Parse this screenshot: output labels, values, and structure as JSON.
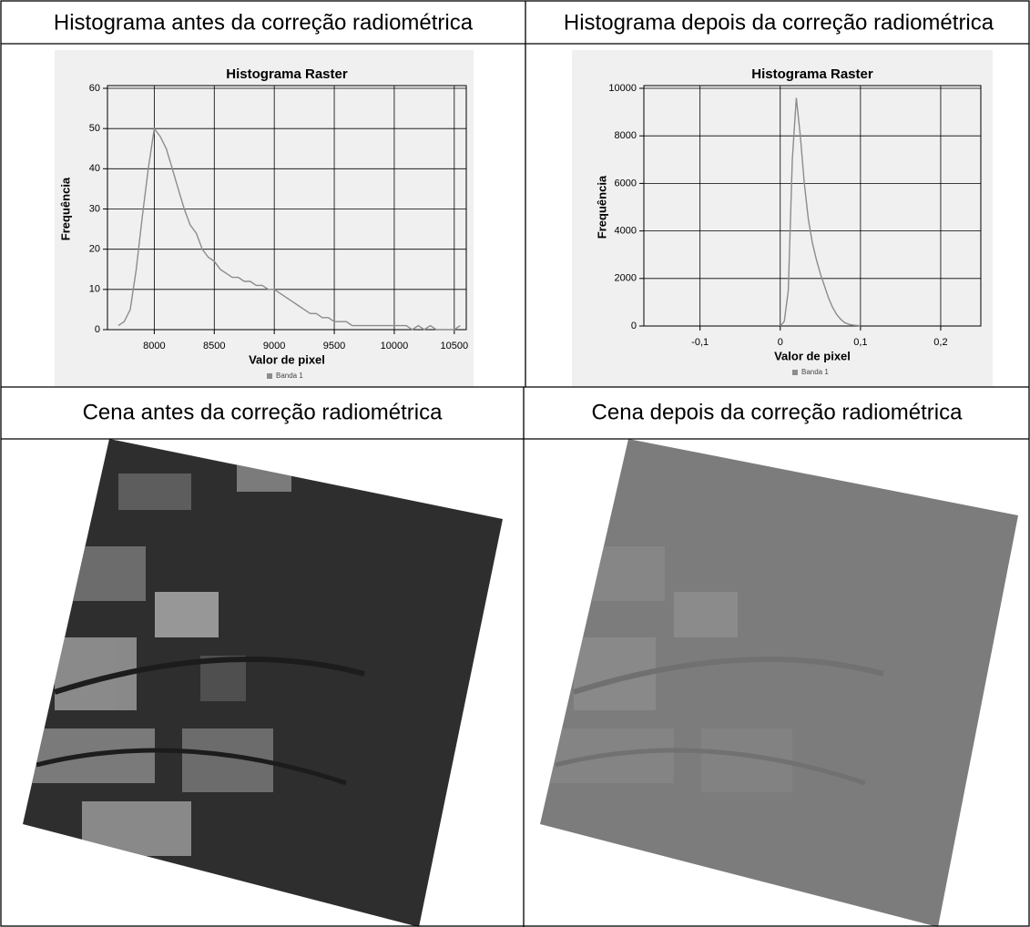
{
  "table": {
    "rows": [
      [
        "Histograma antes da correção radiométrica",
        "Histograma depois da correção radiométrica"
      ],
      [
        "Cena antes da correção radiométrica",
        "Cena depois da correção radiométrica"
      ]
    ]
  },
  "chart_data": [
    {
      "type": "line",
      "title": "Histograma Raster",
      "x_label": "Valor de pixel",
      "y_label": "Frequência",
      "grid": true,
      "xlim": [
        7610,
        10600
      ],
      "ylim": [
        0,
        60
      ],
      "xticks": [
        8000,
        8500,
        9000,
        9500,
        10000,
        10500
      ],
      "yticks": [
        0,
        10,
        20,
        30,
        40,
        50,
        60
      ],
      "x": [
        7700,
        7750,
        7800,
        7850,
        7900,
        7950,
        8000,
        8050,
        8100,
        8150,
        8200,
        8250,
        8300,
        8350,
        8400,
        8450,
        8500,
        8550,
        8600,
        8650,
        8700,
        8750,
        8800,
        8850,
        8900,
        8950,
        9000,
        9050,
        9100,
        9150,
        9200,
        9250,
        9300,
        9350,
        9400,
        9450,
        9500,
        9550,
        9600,
        9650,
        9700,
        9750,
        9800,
        9850,
        9900,
        9950,
        10000,
        10050,
        10100,
        10150,
        10200,
        10250,
        10300,
        10350,
        10400,
        10450,
        10500,
        10550
      ],
      "series": [
        {
          "name": "Banda 1",
          "color": "#8c8c8c",
          "values": [
            1,
            2,
            5,
            15,
            28,
            40,
            50,
            48,
            45,
            40,
            35,
            30,
            26,
            24,
            20,
            18,
            17,
            15,
            14,
            13,
            13,
            12,
            12,
            11,
            11,
            10,
            10,
            9,
            8,
            7,
            6,
            5,
            4,
            4,
            3,
            3,
            2,
            2,
            2,
            1,
            1,
            1,
            1,
            1,
            1,
            1,
            1,
            1,
            1,
            0,
            1,
            0,
            1,
            0,
            0,
            0,
            0,
            1
          ]
        }
      ]
    },
    {
      "type": "line",
      "title": "Histograma Raster",
      "x_label": "Valor de pixel",
      "y_label": "Frequência",
      "grid": true,
      "xlim": [
        -0.17,
        0.25
      ],
      "ylim": [
        0,
        10000
      ],
      "xticks": [
        {
          "value": -0.1,
          "label": "-0,1"
        },
        0,
        {
          "value": 0.1,
          "label": "0,1"
        },
        {
          "value": 0.2,
          "label": "0,2"
        }
      ],
      "yticks": [
        0,
        2000,
        4000,
        6000,
        8000,
        10000
      ],
      "x": [
        0,
        0.005,
        0.01,
        0.015,
        0.02,
        0.025,
        0.03,
        0.035,
        0.04,
        0.045,
        0.05,
        0.055,
        0.06,
        0.065,
        0.07,
        0.075,
        0.08,
        0.085,
        0.09,
        0.1
      ],
      "series": [
        {
          "name": "Banda 1",
          "color": "#8c8c8c",
          "values": [
            0,
            200,
            1500,
            7000,
            9600,
            8000,
            6000,
            4500,
            3500,
            2800,
            2200,
            1700,
            1200,
            800,
            500,
            300,
            150,
            80,
            40,
            10
          ]
        }
      ]
    }
  ]
}
